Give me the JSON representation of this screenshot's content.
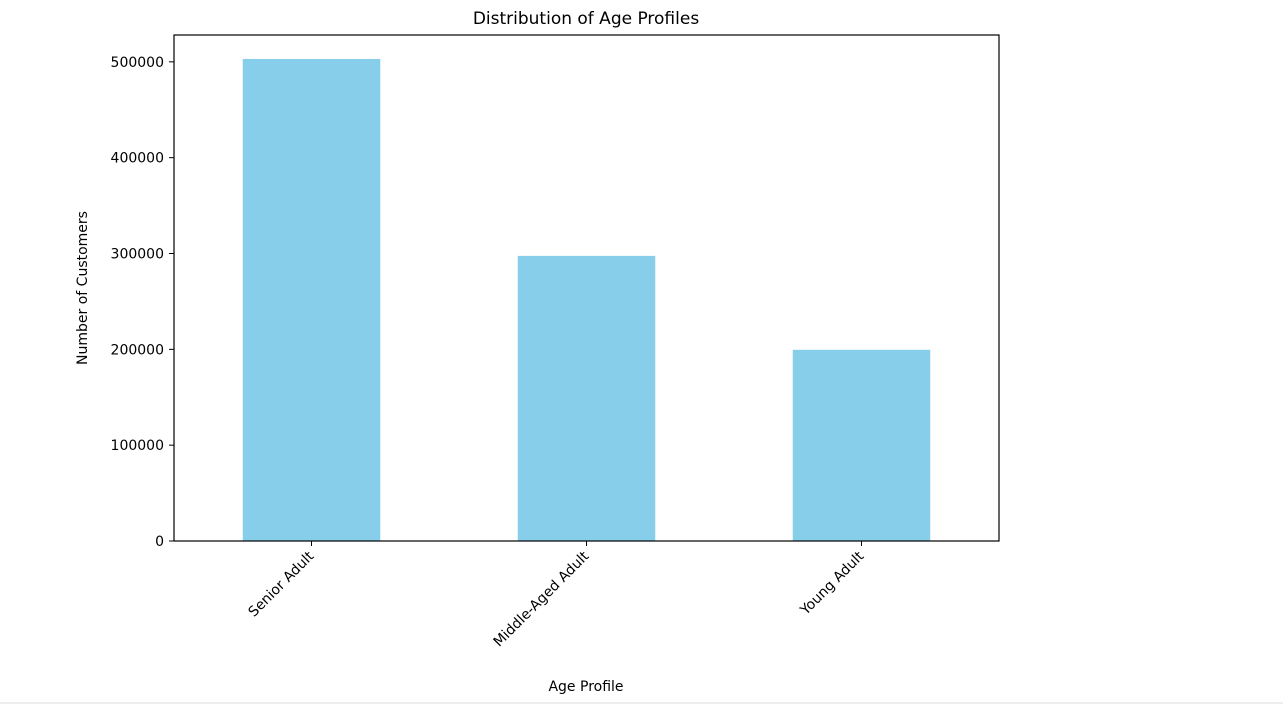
{
  "chart_data": {
    "type": "bar",
    "title": "Distribution of Age Profiles",
    "xlabel": "Age Profile",
    "ylabel": "Number of Customers",
    "categories": [
      "Senior Adult",
      "Middle-Aged Adult",
      "Young Adult"
    ],
    "values": [
      503000,
      297500,
      199500
    ],
    "ylim": [
      0,
      528000
    ],
    "yticks": [
      0,
      100000,
      200000,
      300000,
      400000,
      500000
    ],
    "ytick_labels": [
      "0",
      "100000",
      "200000",
      "300000",
      "400000",
      "500000"
    ],
    "bar_color": "#87CEEB",
    "grid": false,
    "legend": "none",
    "xtick_rotation": 45
  }
}
